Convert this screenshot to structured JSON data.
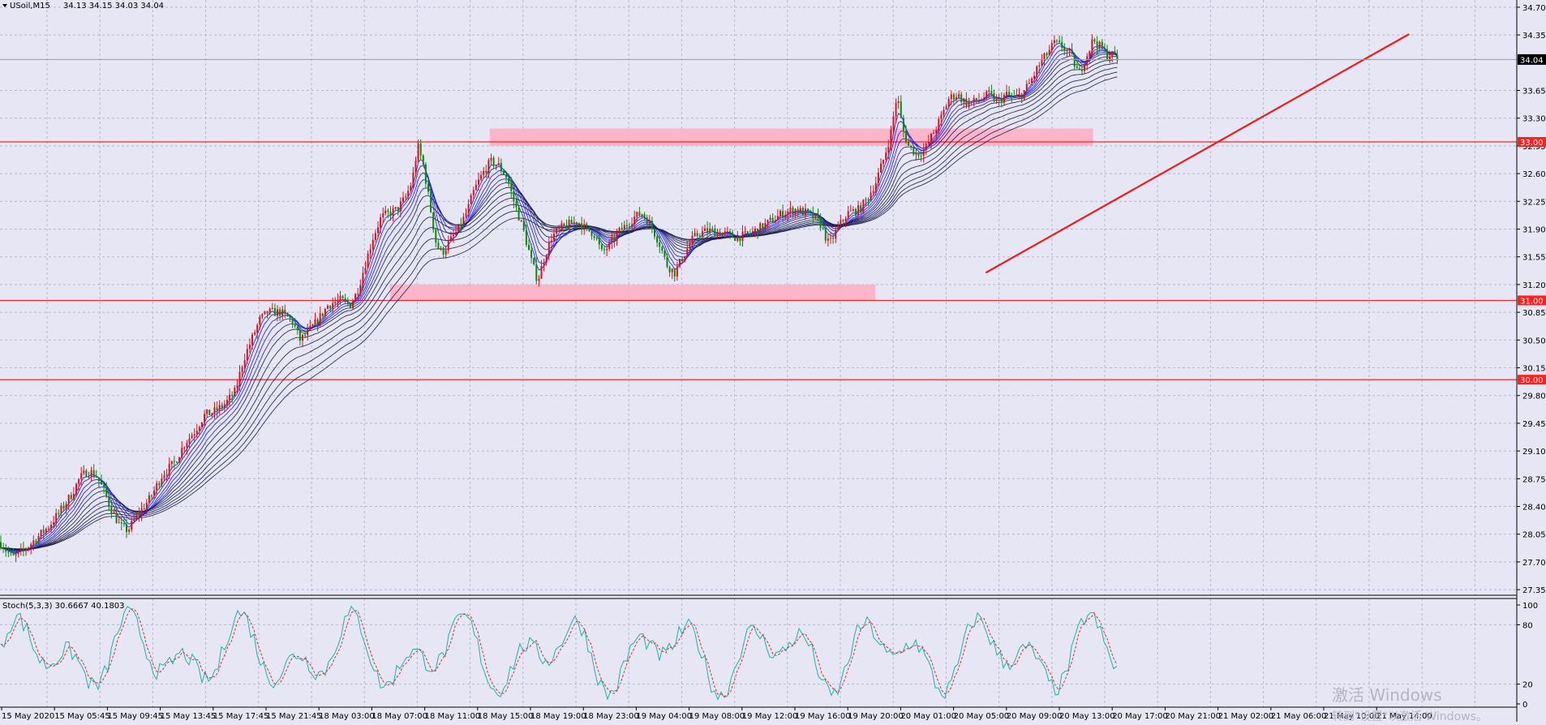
{
  "chart_header": {
    "symbol_timeframe": "USoil,M15",
    "ohlc": "34.13 34.15 34.03 34.04"
  },
  "chart_data": [
    {
      "type": "candlestick",
      "price_axis": {
        "ticks": [
          "34.70",
          "34.35",
          "33.65",
          "33.30",
          "32.95",
          "32.60",
          "32.25",
          "31.90",
          "31.55",
          "31.20",
          "30.85",
          "30.50",
          "30.15",
          "29.80",
          "29.45",
          "29.10",
          "28.75",
          "28.40",
          "28.05",
          "27.70",
          "27.35"
        ],
        "range": [
          27.3,
          34.75
        ],
        "current_price": "34.04",
        "level_labels": [
          "33.00",
          "31.00",
          "30.00"
        ]
      },
      "time_axis": {
        "labels": [
          "15 May 2020",
          "15 May 05:45",
          "15 May 09:45",
          "15 May 13:45",
          "15 May 17:45",
          "15 May 21:45",
          "18 May 03:00",
          "18 May 07:00",
          "18 May 11:00",
          "18 May 15:00",
          "18 May 19:00",
          "18 May 23:00",
          "19 May 04:00",
          "19 May 08:00",
          "19 May 12:00",
          "19 May 16:00",
          "19 May 20:00",
          "20 May 01:00",
          "20 May 05:00",
          "20 May 09:00",
          "20 May 13:00",
          "20 May 17:00",
          "20 May 21:00",
          "21 May 02:00",
          "21 May 06:00",
          "21 May 10:00",
          "21 May 14:00"
        ]
      },
      "price_path": [
        [
          0,
          27.95
        ],
        [
          15,
          27.75
        ],
        [
          30,
          27.85
        ],
        [
          45,
          28.0
        ],
        [
          60,
          28.15
        ],
        [
          75,
          28.35
        ],
        [
          88,
          28.55
        ],
        [
          98,
          28.75
        ],
        [
          108,
          28.85
        ],
        [
          118,
          28.8
        ],
        [
          128,
          28.6
        ],
        [
          138,
          28.35
        ],
        [
          148,
          28.15
        ],
        [
          158,
          28.1
        ],
        [
          170,
          28.3
        ],
        [
          185,
          28.5
        ],
        [
          200,
          28.8
        ],
        [
          215,
          28.95
        ],
        [
          228,
          29.2
        ],
        [
          240,
          29.35
        ],
        [
          252,
          29.55
        ],
        [
          265,
          29.6
        ],
        [
          278,
          29.7
        ],
        [
          290,
          29.85
        ],
        [
          300,
          30.25
        ],
        [
          310,
          30.5
        ],
        [
          320,
          30.75
        ],
        [
          330,
          30.85
        ],
        [
          345,
          30.85
        ],
        [
          360,
          30.75
        ],
        [
          370,
          30.5
        ],
        [
          380,
          30.6
        ],
        [
          392,
          30.75
        ],
        [
          405,
          30.95
        ],
        [
          420,
          31.0
        ],
        [
          432,
          30.95
        ],
        [
          440,
          31.1
        ],
        [
          450,
          31.45
        ],
        [
          460,
          31.8
        ],
        [
          470,
          32.05
        ],
        [
          480,
          32.1
        ],
        [
          490,
          32.15
        ],
        [
          500,
          32.3
        ],
        [
          508,
          32.5
        ],
        [
          515,
          32.95
        ],
        [
          522,
          32.7
        ],
        [
          530,
          32.2
        ],
        [
          538,
          31.7
        ],
        [
          545,
          31.6
        ],
        [
          555,
          31.75
        ],
        [
          565,
          31.9
        ],
        [
          575,
          32.1
        ],
        [
          585,
          32.4
        ],
        [
          595,
          32.6
        ],
        [
          605,
          32.75
        ],
        [
          615,
          32.7
        ],
        [
          625,
          32.55
        ],
        [
          635,
          32.2
        ],
        [
          645,
          31.9
        ],
        [
          655,
          31.5
        ],
        [
          663,
          31.25
        ],
        [
          670,
          31.5
        ],
        [
          680,
          31.8
        ],
        [
          690,
          31.9
        ],
        [
          700,
          31.95
        ],
        [
          712,
          32.0
        ],
        [
          722,
          31.9
        ],
        [
          732,
          31.85
        ],
        [
          742,
          31.6
        ],
        [
          752,
          31.7
        ],
        [
          762,
          31.85
        ],
        [
          772,
          31.95
        ],
        [
          782,
          32.05
        ],
        [
          792,
          32.1
        ],
        [
          802,
          31.95
        ],
        [
          812,
          31.75
        ],
        [
          822,
          31.45
        ],
        [
          832,
          31.35
        ],
        [
          842,
          31.55
        ],
        [
          852,
          31.75
        ],
        [
          862,
          31.85
        ],
        [
          875,
          31.88
        ],
        [
          890,
          31.85
        ],
        [
          905,
          31.8
        ],
        [
          920,
          31.82
        ],
        [
          935,
          31.9
        ],
        [
          950,
          32.0
        ],
        [
          965,
          32.1
        ],
        [
          980,
          32.15
        ],
        [
          995,
          32.1
        ],
        [
          1010,
          32.0
        ],
        [
          1022,
          31.7
        ],
        [
          1032,
          31.9
        ],
        [
          1045,
          32.1
        ],
        [
          1060,
          32.15
        ],
        [
          1070,
          32.3
        ],
        [
          1080,
          32.5
        ],
        [
          1090,
          32.8
        ],
        [
          1098,
          33.1
        ],
        [
          1106,
          33.6
        ],
        [
          1112,
          33.2
        ],
        [
          1120,
          32.95
        ],
        [
          1130,
          32.85
        ],
        [
          1140,
          32.9
        ],
        [
          1150,
          33.1
        ],
        [
          1160,
          33.3
        ],
        [
          1170,
          33.55
        ],
        [
          1180,
          33.6
        ],
        [
          1190,
          33.5
        ],
        [
          1200,
          33.5
        ],
        [
          1210,
          33.55
        ],
        [
          1220,
          33.6
        ],
        [
          1230,
          33.5
        ],
        [
          1240,
          33.6
        ],
        [
          1250,
          33.55
        ],
        [
          1260,
          33.6
        ],
        [
          1270,
          33.75
        ],
        [
          1280,
          33.95
        ],
        [
          1290,
          34.1
        ],
        [
          1300,
          34.25
        ],
        [
          1310,
          34.2
        ],
        [
          1320,
          34.1
        ],
        [
          1330,
          33.85
        ],
        [
          1340,
          34.1
        ],
        [
          1348,
          34.3
        ],
        [
          1356,
          34.2
        ],
        [
          1365,
          34.1
        ],
        [
          1372,
          34.1
        ],
        [
          1378,
          34.04
        ]
      ],
      "horizontal_levels": [
        33.0,
        31.0,
        30.0
      ],
      "zones": [
        {
          "from_x": 0.3168,
          "to_x": 0.707,
          "low": 32.95,
          "high": 33.17
        },
        {
          "from_x": 0.2522,
          "to_x": 0.5661,
          "low": 31.0,
          "high": 31.2
        }
      ],
      "trendline": {
        "start": [
          0.6377,
          31.35
        ],
        "end": [
          0.9114,
          34.36
        ]
      }
    },
    {
      "type": "line",
      "title": "Stoch(5,3,3) 30.6667 40.1803",
      "y_ticks": [
        "100",
        "80",
        "20",
        "0"
      ],
      "ylim": [
        0,
        100
      ],
      "series": [
        {
          "name": "main",
          "color": "#20b2aa"
        },
        {
          "name": "signal",
          "color": "#e03030"
        }
      ]
    }
  ],
  "watermark": {
    "line1": "激活 Windows",
    "line2": "转到\"设置\"以激活 Windows。"
  },
  "colors": {
    "background": "#e6e6f4",
    "level_line": "#ff2020",
    "zone": "#ffb0c4",
    "bull": "#d4141e",
    "bear": "#0a8a0a",
    "ma_fast": "#1b1bdd",
    "ma_slow": "#1c1c52",
    "stoch_main": "#20b2aa",
    "stoch_signal": "#e03030"
  }
}
